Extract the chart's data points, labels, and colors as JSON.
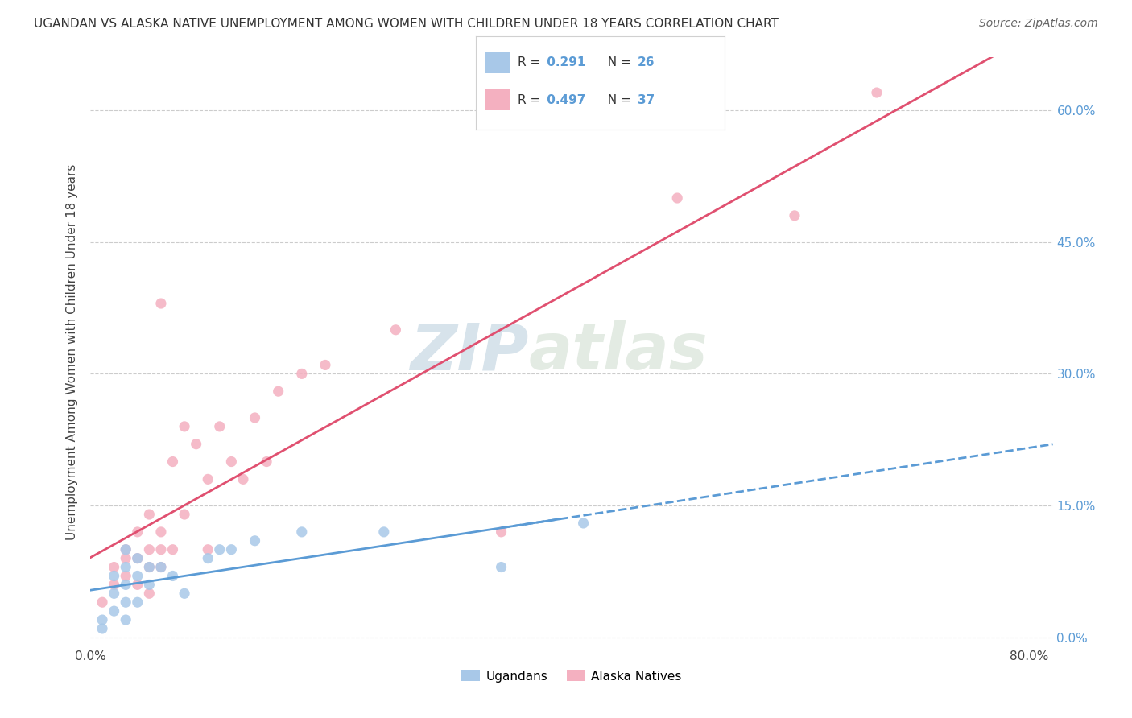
{
  "title": "UGANDAN VS ALASKA NATIVE UNEMPLOYMENT AMONG WOMEN WITH CHILDREN UNDER 18 YEARS CORRELATION CHART",
  "source": "Source: ZipAtlas.com",
  "ylabel": "Unemployment Among Women with Children Under 18 years",
  "xlabel_ugandans": "Ugandans",
  "xlabel_alaska": "Alaska Natives",
  "watermark_zip": "ZIP",
  "watermark_atlas": "atlas",
  "ugandan_R": 0.291,
  "ugandan_N": 26,
  "alaska_R": 0.497,
  "alaska_N": 37,
  "xlim": [
    0.0,
    0.82
  ],
  "ylim": [
    -0.01,
    0.66
  ],
  "ugandan_color": "#a8c8e8",
  "ugandan_line_color": "#5b9bd5",
  "alaska_color": "#f4b0c0",
  "alaska_line_color": "#e05070",
  "ugandan_x": [
    0.01,
    0.01,
    0.02,
    0.02,
    0.02,
    0.03,
    0.03,
    0.03,
    0.03,
    0.03,
    0.04,
    0.04,
    0.04,
    0.05,
    0.05,
    0.06,
    0.07,
    0.08,
    0.1,
    0.11,
    0.12,
    0.14,
    0.18,
    0.25,
    0.35,
    0.42
  ],
  "ugandan_y": [
    0.01,
    0.02,
    0.03,
    0.05,
    0.07,
    0.02,
    0.04,
    0.06,
    0.08,
    0.1,
    0.04,
    0.07,
    0.09,
    0.06,
    0.08,
    0.08,
    0.07,
    0.05,
    0.09,
    0.1,
    0.1,
    0.11,
    0.12,
    0.12,
    0.08,
    0.13
  ],
  "alaska_x": [
    0.01,
    0.02,
    0.02,
    0.03,
    0.03,
    0.03,
    0.04,
    0.04,
    0.04,
    0.05,
    0.05,
    0.05,
    0.05,
    0.06,
    0.06,
    0.06,
    0.06,
    0.07,
    0.07,
    0.08,
    0.08,
    0.09,
    0.1,
    0.1,
    0.11,
    0.12,
    0.13,
    0.14,
    0.15,
    0.16,
    0.18,
    0.2,
    0.26,
    0.35,
    0.5,
    0.6,
    0.67
  ],
  "alaska_y": [
    0.04,
    0.06,
    0.08,
    0.07,
    0.09,
    0.1,
    0.06,
    0.09,
    0.12,
    0.05,
    0.08,
    0.1,
    0.14,
    0.08,
    0.1,
    0.12,
    0.38,
    0.1,
    0.2,
    0.14,
    0.24,
    0.22,
    0.1,
    0.18,
    0.24,
    0.2,
    0.18,
    0.25,
    0.2,
    0.28,
    0.3,
    0.31,
    0.35,
    0.12,
    0.5,
    0.48,
    0.62
  ]
}
